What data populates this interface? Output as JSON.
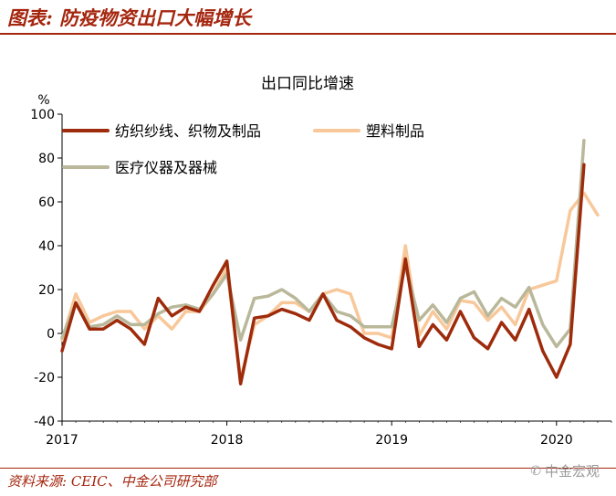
{
  "header": {
    "title": "图表: 防疫物资出口大幅增长"
  },
  "footer": {
    "source": "资料来源: CEIC、中金公司研究部",
    "watermark": "中金宏观",
    "watermark_icon": "wechat-icon"
  },
  "colors": {
    "accent": "#a5260f",
    "series1": "#9e2b0b",
    "series2": "#f8c89a",
    "series3": "#b9b89a"
  },
  "chart_data": {
    "type": "line",
    "title": "出口同比增速",
    "ylabel": "%",
    "ylim": [
      -40,
      100
    ],
    "yticks": [
      -40,
      -20,
      0,
      20,
      40,
      60,
      80,
      100
    ],
    "xlim": [
      0,
      40
    ],
    "xticks": [
      {
        "pos": 0,
        "label": "2017"
      },
      {
        "pos": 12,
        "label": "2018"
      },
      {
        "pos": 24,
        "label": "2019"
      },
      {
        "pos": 36,
        "label": "2020"
      }
    ],
    "legend": "top-left",
    "series": [
      {
        "name": "纺织纱线、织物及制品",
        "color": "#9e2b0b",
        "values": [
          -8,
          14,
          2,
          2,
          6,
          2,
          -5,
          16,
          8,
          12,
          10,
          22,
          33,
          -23,
          7,
          8,
          11,
          9,
          6,
          18,
          6,
          3,
          -2,
          -5,
          -7,
          34,
          -6,
          4,
          -3,
          10,
          -2,
          -7,
          5,
          -3,
          11,
          -8,
          -20,
          -5,
          77
        ]
      },
      {
        "name": "塑料制品",
        "color": "#f8c89a",
        "values": [
          -3,
          18,
          5,
          8,
          10,
          10,
          2,
          8,
          2,
          10,
          10,
          18,
          30,
          -21,
          4,
          8,
          14,
          14,
          10,
          18,
          20,
          18,
          0,
          0,
          -2,
          40,
          -1,
          10,
          2,
          15,
          14,
          6,
          12,
          4,
          20,
          22,
          24,
          56,
          64,
          54
        ]
      },
      {
        "name": "医疗仪器及器械",
        "color": "#b9b89a",
        "values": [
          -2,
          14,
          3,
          4,
          8,
          4,
          4,
          9,
          12,
          13,
          11,
          18,
          27,
          -3,
          16,
          17,
          20,
          16,
          10,
          18,
          10,
          8,
          3,
          3,
          3,
          31,
          6,
          13,
          5,
          16,
          19,
          8,
          16,
          12,
          21,
          4,
          -6,
          2,
          88
        ]
      }
    ]
  }
}
